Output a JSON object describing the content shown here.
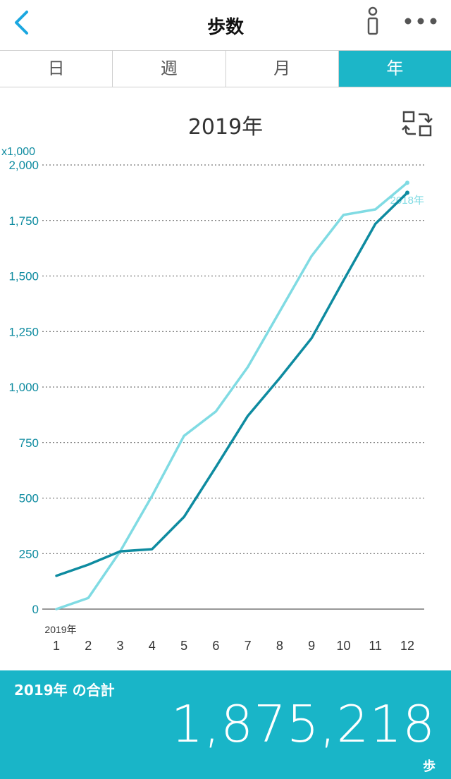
{
  "nav": {
    "title": "歩数"
  },
  "tabs": [
    {
      "label": "日",
      "active": false
    },
    {
      "label": "週",
      "active": false
    },
    {
      "label": "月",
      "active": false
    },
    {
      "label": "年",
      "active": true
    }
  ],
  "chart_header": {
    "title": "2019年"
  },
  "colors": {
    "accent": "#19b5c8",
    "current_series": "#0e8ba0",
    "previous_series": "#80dbe3"
  },
  "chart_data": {
    "type": "line",
    "title": "2019年",
    "unit_label": "x1,000",
    "x_first_label": "2019年",
    "x": [
      1,
      2,
      3,
      4,
      5,
      6,
      7,
      8,
      9,
      10,
      11,
      12
    ],
    "ylim": [
      0,
      2000
    ],
    "yticks": [
      0,
      250,
      500,
      750,
      1000,
      1250,
      1500,
      1750,
      2000
    ],
    "ytick_labels": [
      "0",
      "250",
      "500",
      "750",
      "1,000",
      "1,250",
      "1,500",
      "1,750",
      "2,000"
    ],
    "grid": true,
    "series": [
      {
        "values": [
          150,
          200,
          260,
          270,
          415,
          640,
          870,
          1040,
          1220,
          1480,
          1735,
          1875
        ],
        "color": "#0e8ba0"
      },
      {
        "name": "2018年",
        "values": [
          0,
          50,
          260,
          510,
          780,
          890,
          1090,
          1340,
          1590,
          1775,
          1800,
          1920
        ],
        "color": "#80dbe3"
      }
    ]
  },
  "footer": {
    "label": "2019年 の合計",
    "total": "1,875,218",
    "unit": "歩"
  }
}
